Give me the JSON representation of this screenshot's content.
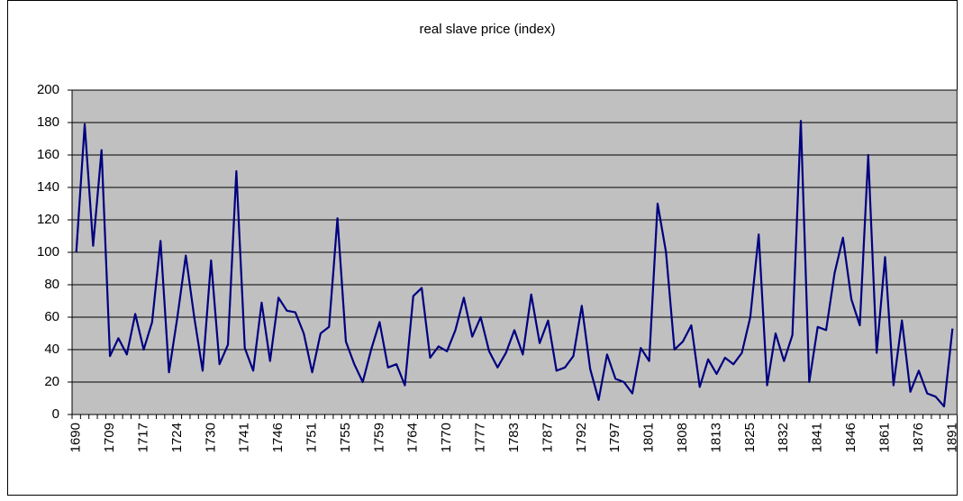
{
  "chart_data": {
    "type": "line",
    "title": "real slave price (index)",
    "categories": [
      "1690",
      null,
      null,
      null,
      "1709",
      null,
      null,
      null,
      "1717",
      null,
      null,
      null,
      "1724",
      null,
      null,
      null,
      "1730",
      null,
      null,
      null,
      "1741",
      null,
      null,
      null,
      "1746",
      null,
      null,
      null,
      "1751",
      null,
      null,
      null,
      "1755",
      null,
      null,
      null,
      "1759",
      null,
      null,
      null,
      "1764",
      null,
      null,
      null,
      "1770",
      null,
      null,
      null,
      "1777",
      null,
      null,
      null,
      "1783",
      null,
      null,
      null,
      "1787",
      null,
      null,
      null,
      "1792",
      null,
      null,
      null,
      "1797",
      null,
      null,
      null,
      "1801",
      null,
      null,
      null,
      "1808",
      null,
      null,
      null,
      "1813",
      null,
      null,
      null,
      "1825",
      null,
      null,
      null,
      "1832",
      null,
      null,
      null,
      "1841",
      null,
      null,
      null,
      "1846",
      null,
      null,
      null,
      "1861",
      null,
      null,
      null,
      "1876",
      null,
      null,
      null,
      "1891"
    ],
    "series": [
      {
        "color": "#000080",
        "values": [
          100,
          179,
          104,
          163,
          36,
          47,
          37,
          62,
          40,
          57,
          107,
          26,
          60,
          98,
          60,
          27,
          95,
          31,
          43,
          150,
          41,
          27,
          69,
          33,
          72,
          64,
          63,
          50,
          26,
          50,
          54,
          121,
          45,
          31,
          20,
          40,
          57,
          29,
          31,
          18,
          73,
          78,
          35,
          42,
          39,
          52,
          72,
          48,
          60,
          39,
          29,
          38,
          52,
          37,
          74,
          44,
          58,
          27,
          29,
          36,
          67,
          28,
          9,
          37,
          22,
          20,
          13,
          41,
          33,
          130,
          100,
          40,
          45,
          55,
          17,
          34,
          25,
          35,
          31,
          38,
          60,
          111,
          18,
          50,
          33,
          49,
          181,
          20,
          54,
          52,
          87,
          109,
          71,
          55,
          160,
          38,
          97,
          18,
          58,
          14,
          27,
          13,
          11,
          5,
          53
        ]
      }
    ],
    "ylim": [
      0,
      200
    ],
    "yticks": [
      0,
      20,
      40,
      60,
      80,
      100,
      120,
      140,
      160,
      180,
      200
    ],
    "grid": true,
    "plot_background": "#c0c0c0"
  }
}
